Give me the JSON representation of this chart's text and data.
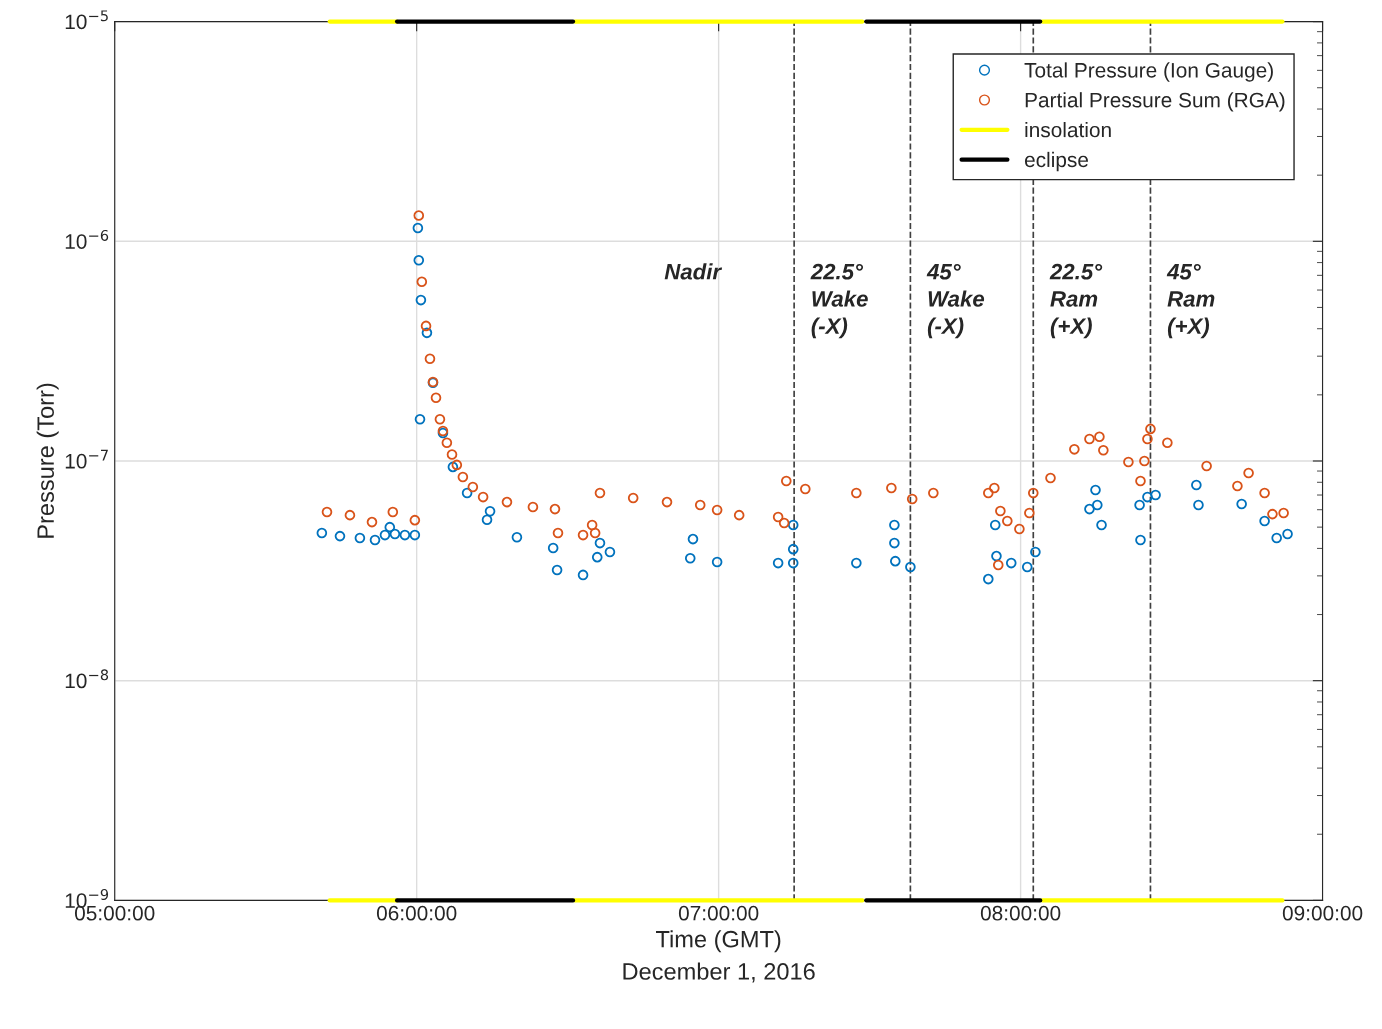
{
  "chart_data": {
    "type": "scatter",
    "xlabel": "Time (GMT)\nDecember 1, 2016",
    "ylabel": "Pressure (Torr)",
    "log": "y",
    "grid": true,
    "legend": "top right",
    "marker": "circle",
    "xlim": [
      5,
      9
    ],
    "xticks": [
      {
        "value": 5,
        "label": "05:00:00"
      },
      {
        "value": 6,
        "label": "06:00:00"
      },
      {
        "value": 7,
        "label": "07:00:00"
      },
      {
        "value": 8,
        "label": "08:00:00"
      },
      {
        "value": 9,
        "label": "09:00:00"
      }
    ],
    "ylim": [
      1e-09,
      1e-05
    ],
    "yticks": [
      {
        "value": 1e-09,
        "label": "10$^{−9}$"
      },
      {
        "value": 1e-08,
        "label": "10$^{−8}$"
      },
      {
        "value": 1e-07,
        "label": "10$^{−7}$"
      },
      {
        "value": 1e-06,
        "label": "10$^{−6}$"
      },
      {
        "value": 1e-05,
        "label": "10$^{−5}$"
      }
    ],
    "series": [
      {
        "name": "Total Pressure (Ion Gauge)",
        "color": "#0072bd",
        "x": [
          5.686,
          5.746,
          5.812,
          5.862,
          5.895,
          5.911,
          5.928,
          5.961,
          5.994,
          6.004,
          6.007,
          6.011,
          6.014,
          6.034,
          6.054,
          6.087,
          6.12,
          6.167,
          6.233,
          6.243,
          6.332,
          6.452,
          6.465,
          6.551,
          6.598,
          6.607,
          6.64,
          6.906,
          6.915,
          6.995,
          7.197,
          7.247,
          7.247,
          7.247,
          7.456,
          7.582,
          7.582,
          7.585,
          7.635,
          7.893,
          7.916,
          7.92,
          7.969,
          8.022,
          8.049,
          8.228,
          8.248,
          8.254,
          8.268,
          8.394,
          8.397,
          8.42,
          8.447,
          8.582,
          8.589,
          8.732,
          8.808,
          8.848,
          8.884
        ],
        "values": [
          4.7e-08,
          4.55e-08,
          4.46e-08,
          4.37e-08,
          4.6e-08,
          5e-08,
          4.65e-08,
          4.6e-08,
          4.6e-08,
          1.15e-06,
          8.2e-07,
          1.55e-07,
          5.4e-07,
          3.83e-07,
          2.27e-07,
          1.34e-07,
          9.4e-08,
          7.15e-08,
          5.4e-08,
          5.9e-08,
          4.5e-08,
          4.02e-08,
          3.19e-08,
          3.03e-08,
          3.65e-08,
          4.23e-08,
          3.85e-08,
          3.61e-08,
          4.41e-08,
          3.47e-08,
          3.43e-08,
          5.11e-08,
          3.97e-08,
          3.43e-08,
          3.43e-08,
          5.11e-08,
          4.23e-08,
          3.5e-08,
          3.29e-08,
          2.9e-08,
          5.11e-08,
          3.69e-08,
          3.43e-08,
          3.29e-08,
          3.85e-08,
          6.04e-08,
          7.38e-08,
          6.3e-08,
          5.11e-08,
          6.3e-08,
          4.37e-08,
          6.85e-08,
          7e-08,
          7.78e-08,
          6.3e-08,
          6.37e-08,
          5.33e-08,
          4.46e-08,
          4.65e-08
        ]
      },
      {
        "name": "Partial Pressure Sum (RGA)",
        "color": "#d95319",
        "x": [
          5.703,
          5.779,
          5.852,
          5.921,
          5.994,
          6.007,
          6.017,
          6.031,
          6.044,
          6.054,
          6.064,
          6.077,
          6.087,
          6.1,
          6.117,
          6.133,
          6.153,
          6.186,
          6.22,
          6.299,
          6.385,
          6.458,
          6.468,
          6.551,
          6.581,
          6.591,
          6.607,
          6.717,
          6.829,
          6.939,
          6.995,
          7.068,
          7.197,
          7.217,
          7.224,
          7.287,
          7.456,
          7.572,
          7.641,
          7.711,
          7.893,
          7.913,
          7.926,
          7.933,
          7.956,
          7.996,
          8.029,
          8.042,
          8.099,
          8.178,
          8.228,
          8.261,
          8.274,
          8.357,
          8.397,
          8.41,
          8.42,
          8.43,
          8.486,
          8.616,
          8.718,
          8.755,
          8.808,
          8.834,
          8.871
        ],
        "values": [
          5.86e-08,
          5.67e-08,
          5.27e-08,
          5.86e-08,
          5.38e-08,
          1.31e-06,
          6.54e-07,
          4.12e-07,
          2.92e-07,
          2.29e-07,
          1.94e-07,
          1.55e-07,
          1.37e-07,
          1.21e-07,
          1.07e-07,
          9.6e-08,
          8.46e-08,
          7.61e-08,
          6.85e-08,
          6.5e-08,
          6.17e-08,
          6.04e-08,
          4.7e-08,
          4.6e-08,
          5.11e-08,
          4.7e-08,
          7.15e-08,
          6.78e-08,
          6.5e-08,
          6.3e-08,
          5.98e-08,
          5.67e-08,
          5.56e-08,
          5.22e-08,
          8.11e-08,
          7.45e-08,
          7.15e-08,
          7.53e-08,
          6.71e-08,
          7.15e-08,
          7.15e-08,
          7.53e-08,
          3.36e-08,
          5.92e-08,
          5.33e-08,
          4.9e-08,
          5.8e-08,
          7.15e-08,
          8.37e-08,
          1.13e-07,
          1.26e-07,
          1.29e-07,
          1.12e-07,
          9.9e-08,
          8.11e-08,
          1e-07,
          1.26e-07,
          1.4e-07,
          1.21e-07,
          9.49e-08,
          7.69e-08,
          8.82e-08,
          7.15e-08,
          5.73e-08,
          5.8e-08
        ]
      },
      {
        "name": "insolation",
        "type": "line",
        "marker": "none",
        "color": "#ffff00",
        "x": [
          5.712,
          5.935
        ],
        "values": [
          1e-05,
          1e-05
        ]
      },
      {
        "type": "line",
        "marker": "none",
        "color": "#ffff00",
        "x": [
          6.524,
          7.476
        ],
        "values": [
          1e-05,
          1e-05
        ]
      },
      {
        "type": "line",
        "marker": "none",
        "color": "#ffff00",
        "x": [
          8.072,
          8.867
        ],
        "values": [
          1e-05,
          1e-05
        ]
      },
      {
        "type": "line",
        "marker": "none",
        "color": "#ffff00",
        "x": [
          5.712,
          5.935
        ],
        "values": [
          1e-09,
          1e-09
        ]
      },
      {
        "type": "line",
        "marker": "none",
        "color": "#ffff00",
        "x": [
          6.524,
          7.476
        ],
        "values": [
          1e-09,
          1e-09
        ]
      },
      {
        "type": "line",
        "marker": "none",
        "color": "#ffff00",
        "x": [
          8.072,
          8.867
        ],
        "values": [
          1e-09,
          1e-09
        ]
      },
      {
        "name": "eclipse",
        "type": "line",
        "marker": "none",
        "color": "#000000",
        "x": [
          5.935,
          6.518
        ],
        "values": [
          1e-05,
          1e-05
        ]
      },
      {
        "type": "line",
        "marker": "none",
        "color": "#000000",
        "x": [
          7.489,
          8.065
        ],
        "values": [
          1e-05,
          1e-05
        ]
      },
      {
        "type": "line",
        "marker": "none",
        "color": "#000000",
        "x": [
          5.935,
          6.518
        ],
        "values": [
          1e-09,
          1e-09
        ]
      },
      {
        "type": "line",
        "marker": "none",
        "color": "#000000",
        "x": [
          7.489,
          8.065
        ],
        "values": [
          1e-09,
          1e-09
        ]
      }
    ],
    "ref_lines": [
      {
        "axis": "x",
        "value": 7.25,
        "label": "22.5°\nWake\n(-X)",
        "color": "#404040",
        "line_style": "dashed"
      },
      {
        "axis": "x",
        "value": 7.635,
        "label": "45°\nWake\n(-X)",
        "color": "#404040",
        "line_style": "dashed"
      },
      {
        "axis": "x",
        "value": 8.042,
        "label": "22.5°\nRam\n(+X)",
        "color": "#404040",
        "line_style": "dashed"
      },
      {
        "axis": "x",
        "value": 8.43,
        "label": "45°\nRam\n(+X)",
        "color": "#404040",
        "line_style": "dashed"
      }
    ],
    "annotations": [
      "Nadir"
    ]
  }
}
